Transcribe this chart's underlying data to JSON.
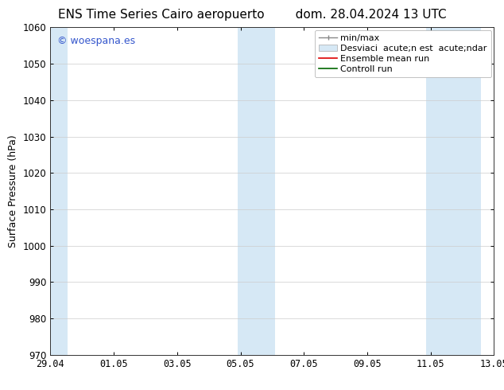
{
  "title_left": "ENS Time Series Cairo aeropuerto",
  "title_right": "dom. 28.04.2024 13 UTC",
  "ylabel": "Surface Pressure (hPa)",
  "ylim": [
    970,
    1060
  ],
  "yticks": [
    970,
    980,
    990,
    1000,
    1010,
    1020,
    1030,
    1040,
    1050,
    1060
  ],
  "xtick_labels": [
    "29.04",
    "01.05",
    "03.05",
    "05.05",
    "07.05",
    "09.05",
    "11.05",
    "13.05"
  ],
  "xtick_positions": [
    0,
    2,
    4,
    6,
    8,
    10,
    12,
    14
  ],
  "xlim": [
    0,
    14
  ],
  "shaded_bands": [
    {
      "x_start": -0.1,
      "x_end": 0.55,
      "color": "#d6e8f5"
    },
    {
      "x_start": 5.9,
      "x_end": 7.1,
      "color": "#d6e8f5"
    },
    {
      "x_start": 11.85,
      "x_end": 13.6,
      "color": "#d6e8f5"
    }
  ],
  "watermark_text": "© woespana.es",
  "watermark_color": "#3355cc",
  "bg_color": "#ffffff",
  "plot_bg_color": "#ffffff",
  "grid_color": "#cccccc",
  "title_fontsize": 11,
  "tick_fontsize": 8.5,
  "ylabel_fontsize": 9,
  "legend_fontsize": 8
}
